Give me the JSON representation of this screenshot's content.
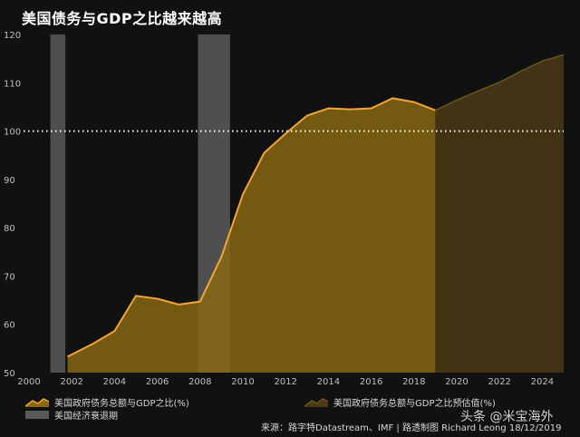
{
  "chart_data": {
    "type": "area",
    "title": "美国债务与GDP之比越来越高",
    "xlabel": "",
    "ylabel": "",
    "xlim": [
      2000,
      2025
    ],
    "ylim": [
      50,
      120
    ],
    "x_ticks": [
      "2000",
      "2002",
      "2004",
      "2006",
      "2008",
      "2010",
      "2012",
      "2014",
      "2016",
      "2018",
      "2020",
      "2022",
      "2024"
    ],
    "y_ticks": [
      "50",
      "60",
      "70",
      "80",
      "90",
      "100",
      "110",
      "120"
    ],
    "reference_line": {
      "y": 100,
      "style": "dotted",
      "color": "#ffffff"
    },
    "recession_periods": [
      [
        2001.0,
        2001.7
      ],
      [
        2007.9,
        2009.4
      ]
    ],
    "series": [
      {
        "name": "美国政府债务总额与GDP之比(%)",
        "color": "#f2a33a",
        "fill": "#8a6a10",
        "x": [
          2001.8,
          2003,
          2004,
          2005,
          2006,
          2007,
          2008,
          2009,
          2010,
          2011,
          2012,
          2013,
          2014,
          2015,
          2016,
          2017,
          2018,
          2019
        ],
        "y": [
          53.3,
          56.0,
          58.6,
          65.9,
          65.3,
          64.1,
          64.7,
          74.0,
          86.9,
          95.5,
          99.5,
          103.2,
          104.7,
          104.5,
          104.7,
          106.8,
          106.0,
          104.3
        ]
      },
      {
        "name": "美国政府债务总额与GDP之比预估值(%)",
        "color": "#6a5520",
        "fill": "#4a3a14",
        "x": [
          2019,
          2020,
          2021,
          2022,
          2023,
          2024,
          2025
        ],
        "y": [
          104.3,
          106.4,
          108.3,
          110.1,
          112.4,
          114.5,
          115.8
        ]
      }
    ],
    "legend": {
      "series_1": "美国政府债务总额与GDP之比(%)",
      "series_2": "美国政府债务总额与GDP之比预估值(%)",
      "recession": "美国经济衰退期"
    },
    "source": "来源：路字特Datastream、IMF | 路透制图 Richard Leong 18/12/2019",
    "watermark": "头条 @米宝海外"
  }
}
